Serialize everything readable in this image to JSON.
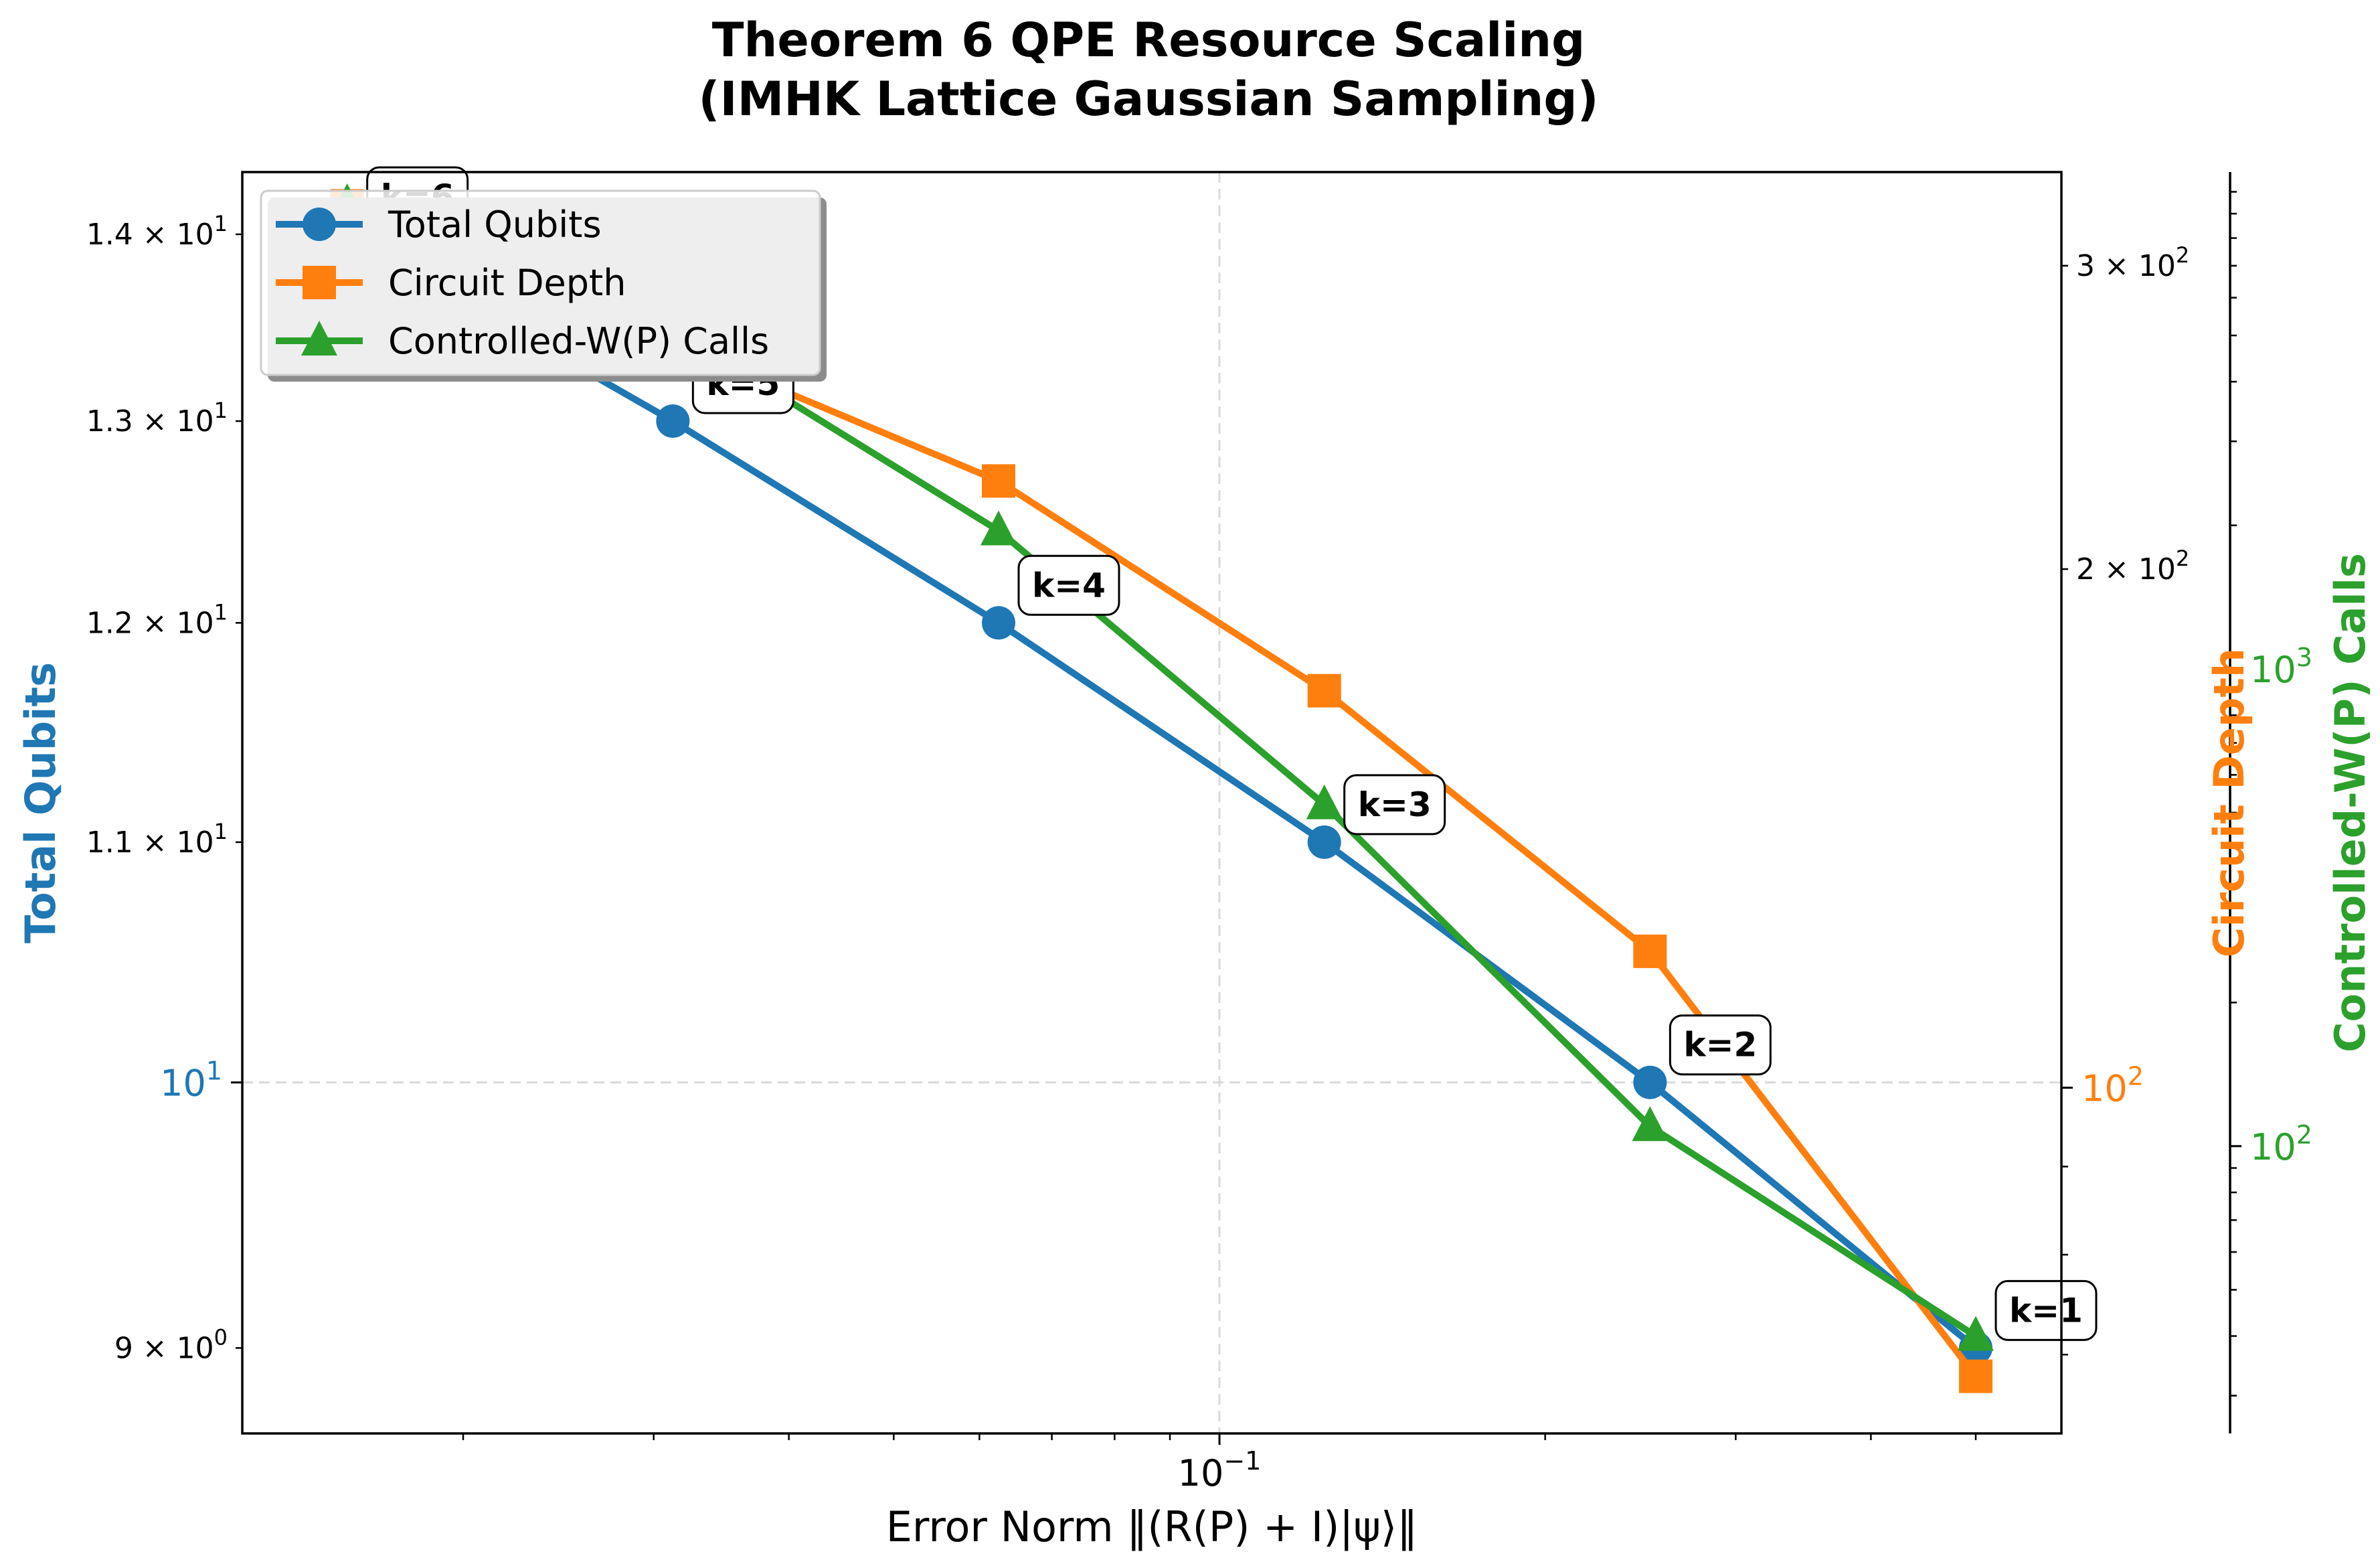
{
  "chart_data": {
    "type": "line",
    "title": [
      "Theorem 6 QPE Resource Scaling",
      "(IMHK Lattice Gaussian Sampling)"
    ],
    "xlabel": "Error Norm ‖(R(P) + I)|ψ⟩‖",
    "xscale": "log",
    "xlim": [
      0.0125,
      0.6
    ],
    "x_ticks": [
      {
        "value": 0.1,
        "label": "10",
        "exp": "−1"
      }
    ],
    "grid": true,
    "legend_position": "upper-left",
    "axes": {
      "left": {
        "label": "Total Qubits",
        "scale": "log",
        "ylim": [
          8.7,
          14.35
        ],
        "color": "#1f77b4",
        "ticks": [
          {
            "value": 9,
            "mant": "9",
            "exp": "0"
          },
          {
            "value": 11,
            "mant": "1.1",
            "exp": "1"
          },
          {
            "value": 12,
            "mant": "1.2",
            "exp": "1"
          },
          {
            "value": 13,
            "mant": "1.3",
            "exp": "1"
          },
          {
            "value": 14,
            "mant": "1.4",
            "exp": "1"
          }
        ],
        "major_ticks": [
          {
            "value": 10,
            "label": "10",
            "exp": "1"
          }
        ]
      },
      "right": {
        "label": "Circuit Depth",
        "scale": "log",
        "ylim": [
          63,
          340
        ],
        "color": "#ff7f0e",
        "ticks": [
          {
            "value": 200,
            "mant": "2",
            "exp": "2"
          },
          {
            "value": 300,
            "mant": "3",
            "exp": "2"
          }
        ],
        "major_ticks": [
          {
            "value": 100,
            "label": "10",
            "exp": "2"
          }
        ]
      },
      "right2": {
        "label": "Controlled-W(P) Calls",
        "scale": "log",
        "ylim": [
          25,
          11000
        ],
        "color": "#2ca02c",
        "major_ticks": [
          {
            "value": 100,
            "label": "10",
            "exp": "2"
          },
          {
            "value": 1000,
            "label": "10",
            "exp": "3"
          }
        ]
      }
    },
    "series": [
      {
        "name": "Total Qubits",
        "axis": "left",
        "color": "#1f77b4",
        "marker": "circle",
        "x": [
          0.5,
          0.25,
          0.125,
          0.0625,
          0.03125,
          0.015625
        ],
        "y": [
          9,
          10,
          11,
          12,
          13,
          14
        ]
      },
      {
        "name": "Circuit Depth",
        "axis": "right",
        "color": "#ff7f0e",
        "marker": "square",
        "x": [
          0.5,
          0.25,
          0.125,
          0.0625,
          0.03125,
          0.015625
        ],
        "y": [
          68,
          120,
          170,
          225,
          270,
          325
        ]
      },
      {
        "name": "Controlled-W(P) Calls",
        "axis": "right2",
        "color": "#2ca02c",
        "marker": "triangle",
        "x": [
          0.5,
          0.25,
          0.125,
          0.0625,
          0.03125,
          0.015625
        ],
        "y": [
          40,
          110,
          520,
          1950,
          5150,
          9450
        ]
      }
    ],
    "annotations": [
      {
        "text": "k=1",
        "x": 0.5,
        "y": 9
      },
      {
        "text": "k=2",
        "x": 0.25,
        "y": 10
      },
      {
        "text": "k=3",
        "x": 0.125,
        "y": 11
      },
      {
        "text": "k=4",
        "x": 0.0625,
        "y": 12
      },
      {
        "text": "k=5",
        "x": 0.03125,
        "y": 13
      },
      {
        "text": "k=6",
        "x": 0.015625,
        "y": 14
      }
    ]
  }
}
